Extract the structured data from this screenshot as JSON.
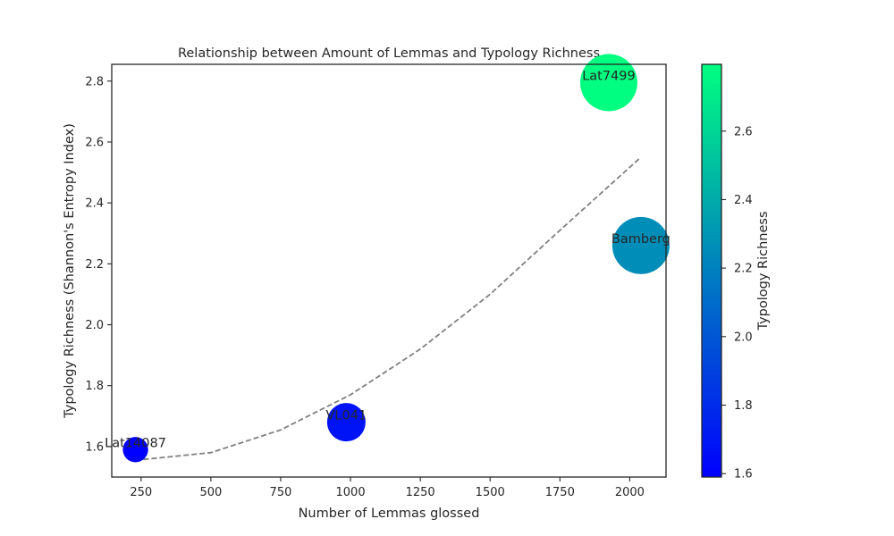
{
  "chart_data": {
    "type": "scatter",
    "title": "Relationship between Amount of Lemmas and Typology Richness",
    "xlabel": "Number of Lemmas glossed",
    "ylabel": "Typology Richness (Shannon's Entropy Index)",
    "xlim": [
      145,
      2130
    ],
    "ylim": [
      1.5,
      2.855
    ],
    "xticks": [
      250,
      500,
      750,
      1000,
      1250,
      1500,
      1750,
      2000
    ],
    "yticks": [
      1.6,
      1.8,
      2.0,
      2.2,
      2.4,
      2.6,
      2.8
    ],
    "grid": false,
    "points": [
      {
        "label": "Lat14087",
        "x": 230,
        "y": 1.59,
        "size": 0.15
      },
      {
        "label": "VL041",
        "x": 985,
        "y": 1.68,
        "size": 0.5
      },
      {
        "label": "Lat7499",
        "x": 1925,
        "y": 2.795,
        "size": 1.0
      },
      {
        "label": "Bamberg",
        "x": 2040,
        "y": 2.26,
        "size": 1.0
      }
    ],
    "trendline": {
      "style": "dashed",
      "color": "#808080",
      "points": [
        [
          230,
          1.555
        ],
        [
          500,
          1.58
        ],
        [
          750,
          1.655
        ],
        [
          1000,
          1.77
        ],
        [
          1250,
          1.92
        ],
        [
          1500,
          2.1
        ],
        [
          1750,
          2.31
        ],
        [
          2040,
          2.55
        ]
      ]
    },
    "colorbar": {
      "label": "Typology Richness",
      "colormap": "winter",
      "range": [
        1.59,
        2.795
      ],
      "ticks": [
        1.6,
        1.8,
        2.0,
        2.2,
        2.4,
        2.6
      ],
      "colors": [
        "#0000ff",
        "#00ff80"
      ]
    }
  }
}
